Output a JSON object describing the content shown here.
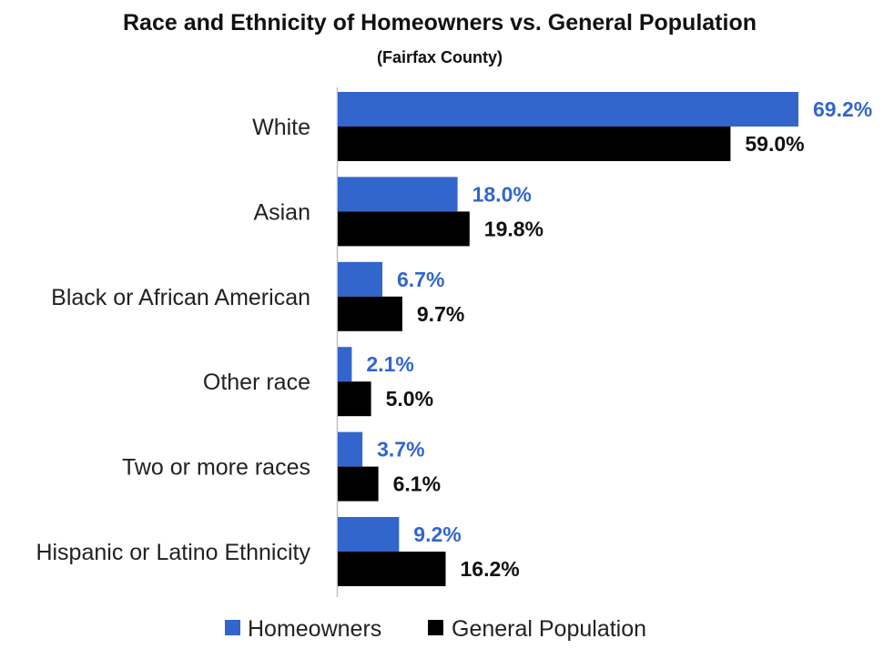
{
  "chart_data": {
    "type": "bar",
    "orientation": "horizontal",
    "title": "Race and Ethnicity of Homeowners vs. General Population",
    "subtitle": "(Fairfax County)",
    "categories": [
      "White",
      "Asian",
      "Black or African American",
      "Other race",
      "Two or more races",
      "Hispanic or Latino Ethnicity"
    ],
    "series": [
      {
        "name": "Homeowners",
        "color": "#3366cc",
        "values": [
          69.2,
          18.0,
          6.7,
          2.1,
          3.7,
          9.2
        ],
        "labels": [
          "69.2%",
          "18.0%",
          "6.7%",
          "2.1%",
          "3.7%",
          "9.2%"
        ]
      },
      {
        "name": "General Population",
        "color": "#000000",
        "values": [
          59.0,
          19.8,
          9.7,
          5.0,
          6.1,
          16.2
        ],
        "labels": [
          "59.0%",
          "19.8%",
          "9.7%",
          "5.0%",
          "6.1%",
          "16.2%"
        ]
      }
    ],
    "xlim": [
      0,
      70
    ],
    "grid": false,
    "legend": "bottom"
  }
}
